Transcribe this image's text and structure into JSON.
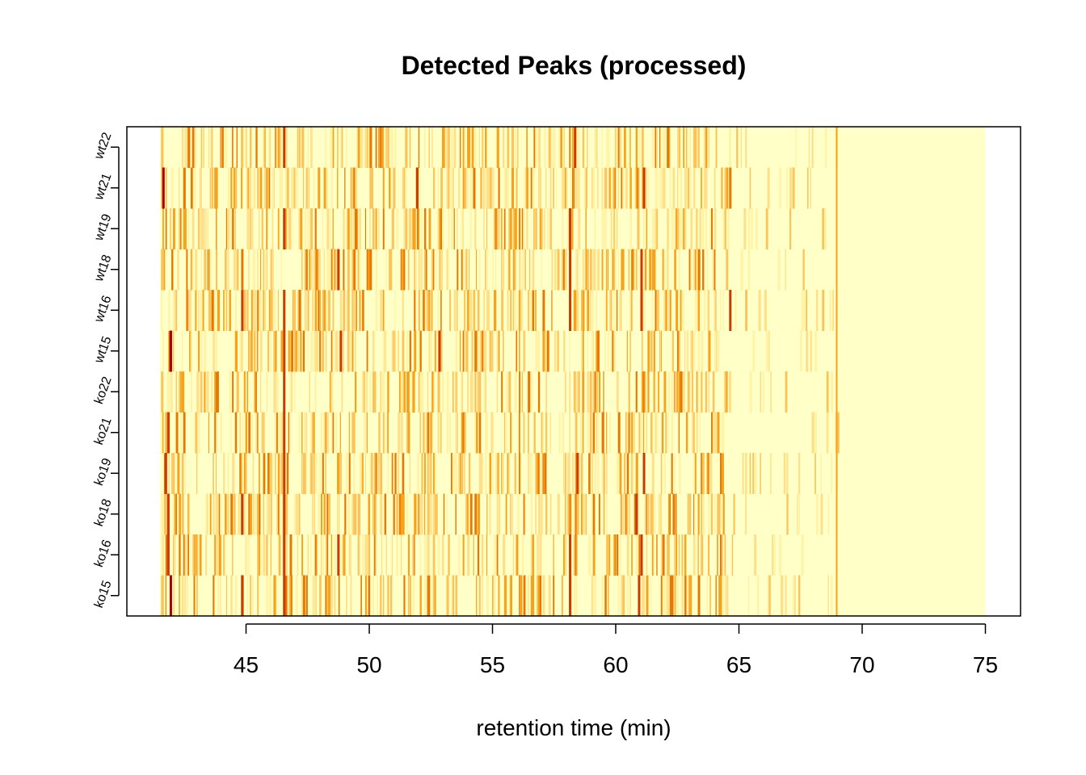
{
  "chart_data": {
    "type": "heatmap",
    "title": "Detected Peaks (processed)",
    "xlabel": "retention time (min)",
    "ylabel": "",
    "x_range": [
      41.5,
      75
    ],
    "xticks": [
      45,
      50,
      55,
      60,
      65,
      70,
      75
    ],
    "samples": [
      "ko15",
      "ko16",
      "ko18",
      "ko19",
      "ko21",
      "ko22",
      "wt15",
      "wt16",
      "wt18",
      "wt19",
      "wt21",
      "wt22"
    ],
    "color_scale": [
      "#FFFFC8",
      "#FFF3A8",
      "#FFE08A",
      "#FBC35A",
      "#F7A21A",
      "#E87800",
      "#CC3A00",
      "#A80000"
    ],
    "background_color": "#FFFFC8",
    "peak_region_end": 69,
    "strong_peaks": [
      {
        "x": 41.9,
        "sample": "ko15",
        "intensity": 0.95
      },
      {
        "x": 41.8,
        "sample": "ko16",
        "intensity": 0.9
      },
      {
        "x": 41.8,
        "sample": "ko18",
        "intensity": 0.85
      },
      {
        "x": 41.7,
        "sample": "ko19",
        "intensity": 0.85
      },
      {
        "x": 41.8,
        "sample": "ko21",
        "intensity": 0.8
      },
      {
        "x": 41.9,
        "sample": "wt15",
        "intensity": 0.95
      },
      {
        "x": 41.6,
        "sample": "wt21",
        "intensity": 0.95
      },
      {
        "x": 44.8,
        "sample": "ko15",
        "intensity": 0.85
      },
      {
        "x": 44.8,
        "sample": "ko18",
        "intensity": 0.8
      },
      {
        "x": 44.8,
        "sample": "wt16",
        "intensity": 0.8
      },
      {
        "x": 44.8,
        "sample": "wt18",
        "intensity": 0.75
      },
      {
        "x": 46.5,
        "sample": "ko15",
        "intensity": 0.9
      },
      {
        "x": 46.5,
        "sample": "ko16",
        "intensity": 0.85
      },
      {
        "x": 46.5,
        "sample": "ko18",
        "intensity": 0.85
      },
      {
        "x": 46.5,
        "sample": "ko19",
        "intensity": 0.8
      },
      {
        "x": 46.5,
        "sample": "ko21",
        "intensity": 0.8
      },
      {
        "x": 46.5,
        "sample": "ko22",
        "intensity": 0.85
      },
      {
        "x": 46.5,
        "sample": "wt15",
        "intensity": 0.85
      },
      {
        "x": 46.5,
        "sample": "wt16",
        "intensity": 0.85
      },
      {
        "x": 46.5,
        "sample": "wt19",
        "intensity": 0.85
      },
      {
        "x": 46.5,
        "sample": "wt22",
        "intensity": 0.85
      },
      {
        "x": 48.7,
        "sample": "ko16",
        "intensity": 0.85
      },
      {
        "x": 48.8,
        "sample": "wt15",
        "intensity": 0.85
      },
      {
        "x": 48.7,
        "sample": "wt18",
        "intensity": 0.8
      },
      {
        "x": 51.9,
        "sample": "wt21",
        "intensity": 0.8
      },
      {
        "x": 52.8,
        "sample": "wt15",
        "intensity": 0.8
      },
      {
        "x": 58.1,
        "sample": "ko15",
        "intensity": 0.9
      },
      {
        "x": 58.1,
        "sample": "ko16",
        "intensity": 0.85
      },
      {
        "x": 58.1,
        "sample": "wt16",
        "intensity": 0.8
      },
      {
        "x": 58.1,
        "sample": "wt18",
        "intensity": 0.85
      },
      {
        "x": 58.1,
        "sample": "wt19",
        "intensity": 0.85
      },
      {
        "x": 58.3,
        "sample": "wt22",
        "intensity": 0.85
      },
      {
        "x": 58.4,
        "sample": "ko19",
        "intensity": 0.85
      },
      {
        "x": 60.9,
        "sample": "ko15",
        "intensity": 0.9
      },
      {
        "x": 61.0,
        "sample": "ko16",
        "intensity": 0.9
      },
      {
        "x": 61.0,
        "sample": "wt16",
        "intensity": 0.9
      },
      {
        "x": 61.0,
        "sample": "wt18",
        "intensity": 0.85
      },
      {
        "x": 61.1,
        "sample": "wt21",
        "intensity": 0.85
      },
      {
        "x": 60.8,
        "sample": "ko18",
        "intensity": 0.8
      },
      {
        "x": 61.1,
        "sample": "ko19",
        "intensity": 0.8
      },
      {
        "x": 64.6,
        "sample": "wt16",
        "intensity": 0.9
      },
      {
        "x": 64.6,
        "sample": "wt21",
        "intensity": 0.75
      }
    ]
  }
}
